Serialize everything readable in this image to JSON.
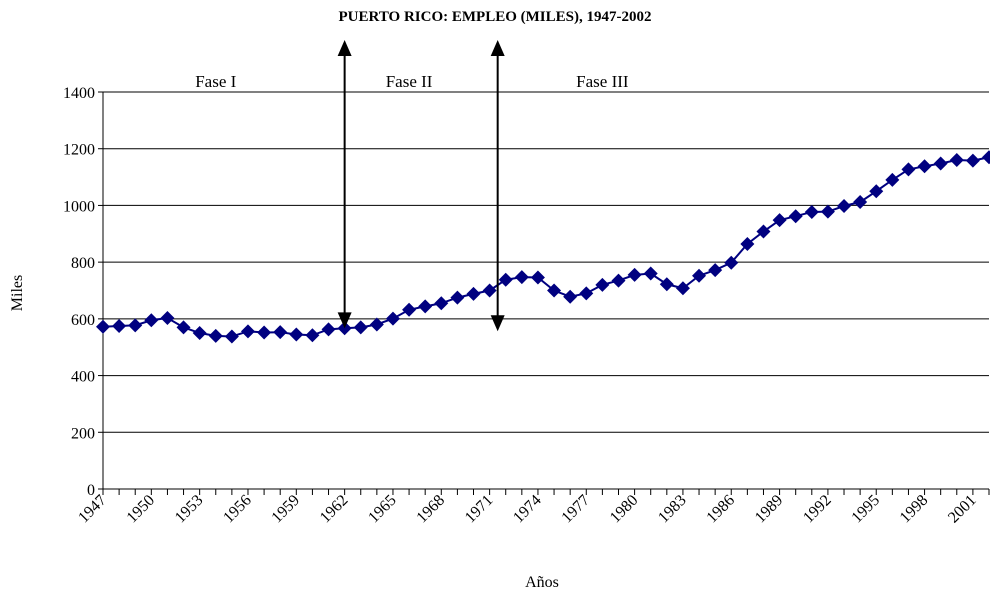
{
  "chart_data": {
    "type": "line",
    "title": "PUERTO RICO: EMPLEO (MILES), 1947-2002",
    "xlabel": "Años",
    "ylabel": "Miles",
    "ylim": [
      0,
      1400
    ],
    "yticks": [
      0,
      200,
      400,
      600,
      800,
      1000,
      1200,
      1400
    ],
    "xtick_labels": [
      "1947",
      "1950",
      "1953",
      "1956",
      "1959",
      "1962",
      "1965",
      "1968",
      "1971",
      "1974",
      "1977",
      "1980",
      "1983",
      "1986",
      "1989",
      "1992",
      "1995",
      "1998",
      "2001"
    ],
    "grid": "horizontal",
    "legend": "none",
    "series_color": "#000080",
    "marker": "diamond",
    "x": [
      1947,
      1948,
      1949,
      1950,
      1951,
      1952,
      1953,
      1954,
      1955,
      1956,
      1957,
      1958,
      1959,
      1960,
      1961,
      1962,
      1963,
      1964,
      1965,
      1966,
      1967,
      1968,
      1969,
      1970,
      1971,
      1972,
      1973,
      1974,
      1975,
      1976,
      1977,
      1978,
      1979,
      1980,
      1981,
      1982,
      1983,
      1984,
      1985,
      1986,
      1987,
      1988,
      1989,
      1990,
      1991,
      1992,
      1993,
      1994,
      1995,
      1996,
      1997,
      1998,
      1999,
      2000,
      2001,
      2002
    ],
    "series": [
      {
        "values": [
          572,
          575,
          577,
          595,
          603,
          570,
          550,
          540,
          538,
          556,
          552,
          553,
          545,
          542,
          563,
          567,
          570,
          580,
          601,
          632,
          644,
          655,
          675,
          688,
          700,
          738,
          747,
          746,
          700,
          678,
          690,
          720,
          735,
          755,
          760,
          722,
          708,
          752,
          772,
          798,
          864,
          908,
          948,
          962,
          977,
          978,
          998,
          1012,
          1050,
          1090,
          1127,
          1138,
          1148,
          1160,
          1158,
          1170
        ]
      }
    ],
    "annotations": [
      {
        "text": "Fase I",
        "x": 1954
      },
      {
        "text": "Fase II",
        "x": 1966
      },
      {
        "text": "Fase III",
        "x": 1978
      }
    ],
    "arrows": [
      {
        "x": 1962,
        "from": 1400,
        "to": 570
      },
      {
        "x": 1971.5,
        "from": 1400,
        "to": 560
      }
    ]
  }
}
